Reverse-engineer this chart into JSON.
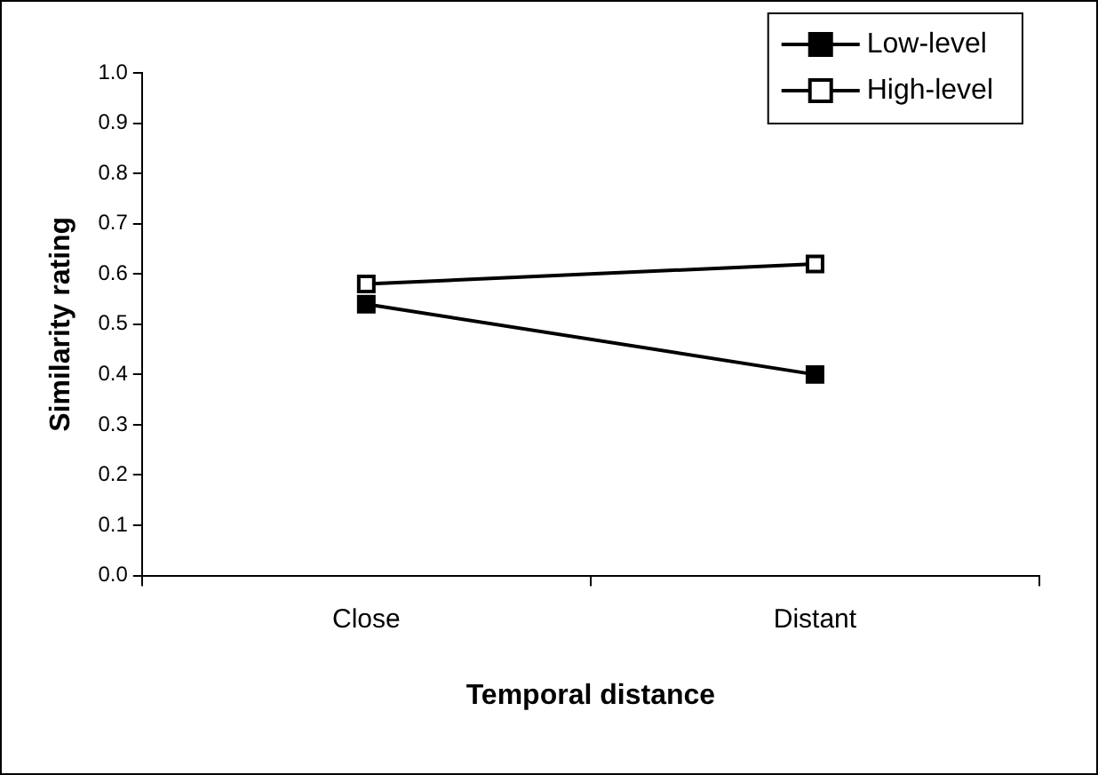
{
  "chart_data": {
    "type": "line",
    "xlabel": "Temporal distance",
    "ylabel": "Similarity rating",
    "categories": [
      "Close",
      "Distant"
    ],
    "series": [
      {
        "name": "Low-level",
        "color": "#000000",
        "values": [
          0.54,
          0.4
        ]
      },
      {
        "name": "High-level",
        "color": "#000000",
        "colors": [
          "#ffffff",
          "#ffffff"
        ],
        "values": [
          0.58,
          0.62
        ]
      }
    ],
    "ylim": [
      0,
      1
    ],
    "yticks": [
      {
        "value": 0,
        "label": "0.0"
      },
      0.1,
      0.2,
      0.3,
      0.4,
      0.5,
      0.6,
      0.7,
      0.8,
      0.9,
      {
        "value": 1,
        "label": "1.0"
      }
    ],
    "grid": false,
    "legend": "top right",
    "marker": "square",
    "line_style": "solid"
  }
}
